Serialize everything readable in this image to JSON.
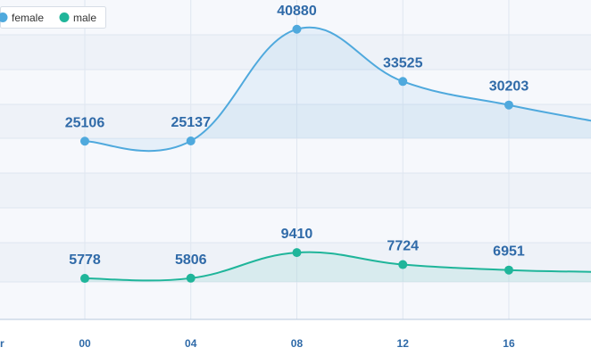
{
  "chart_data": {
    "type": "line",
    "x": [
      "00",
      "04",
      "08",
      "12",
      "16"
    ],
    "x_hours": [
      0,
      4,
      8,
      12,
      16
    ],
    "series": [
      {
        "name": "female",
        "color": "#4fa9dd",
        "values": [
          25106,
          25137,
          40880,
          33525,
          30203
        ]
      },
      {
        "name": "male",
        "color": "#1fb59a",
        "values": [
          5778,
          5806,
          9410,
          7724,
          6951
        ]
      }
    ],
    "legend": {
      "placement": "top-left",
      "entries": [
        "female",
        "male"
      ]
    },
    "x_axis": {
      "partial_left_tick": "r"
    },
    "ylim": [
      0,
      45000
    ],
    "xlim": [
      -3.2,
      19.1
    ],
    "grid": true,
    "line_style": "smooth",
    "colors": {
      "background": "#ffffff",
      "plot_band_light": "#f6f8fc",
      "plot_band_dark": "#eef2f8",
      "grid_line": "#dfe6f0",
      "axis_line": "#b7c8dd",
      "tick_label": "#2f6aa8"
    }
  }
}
